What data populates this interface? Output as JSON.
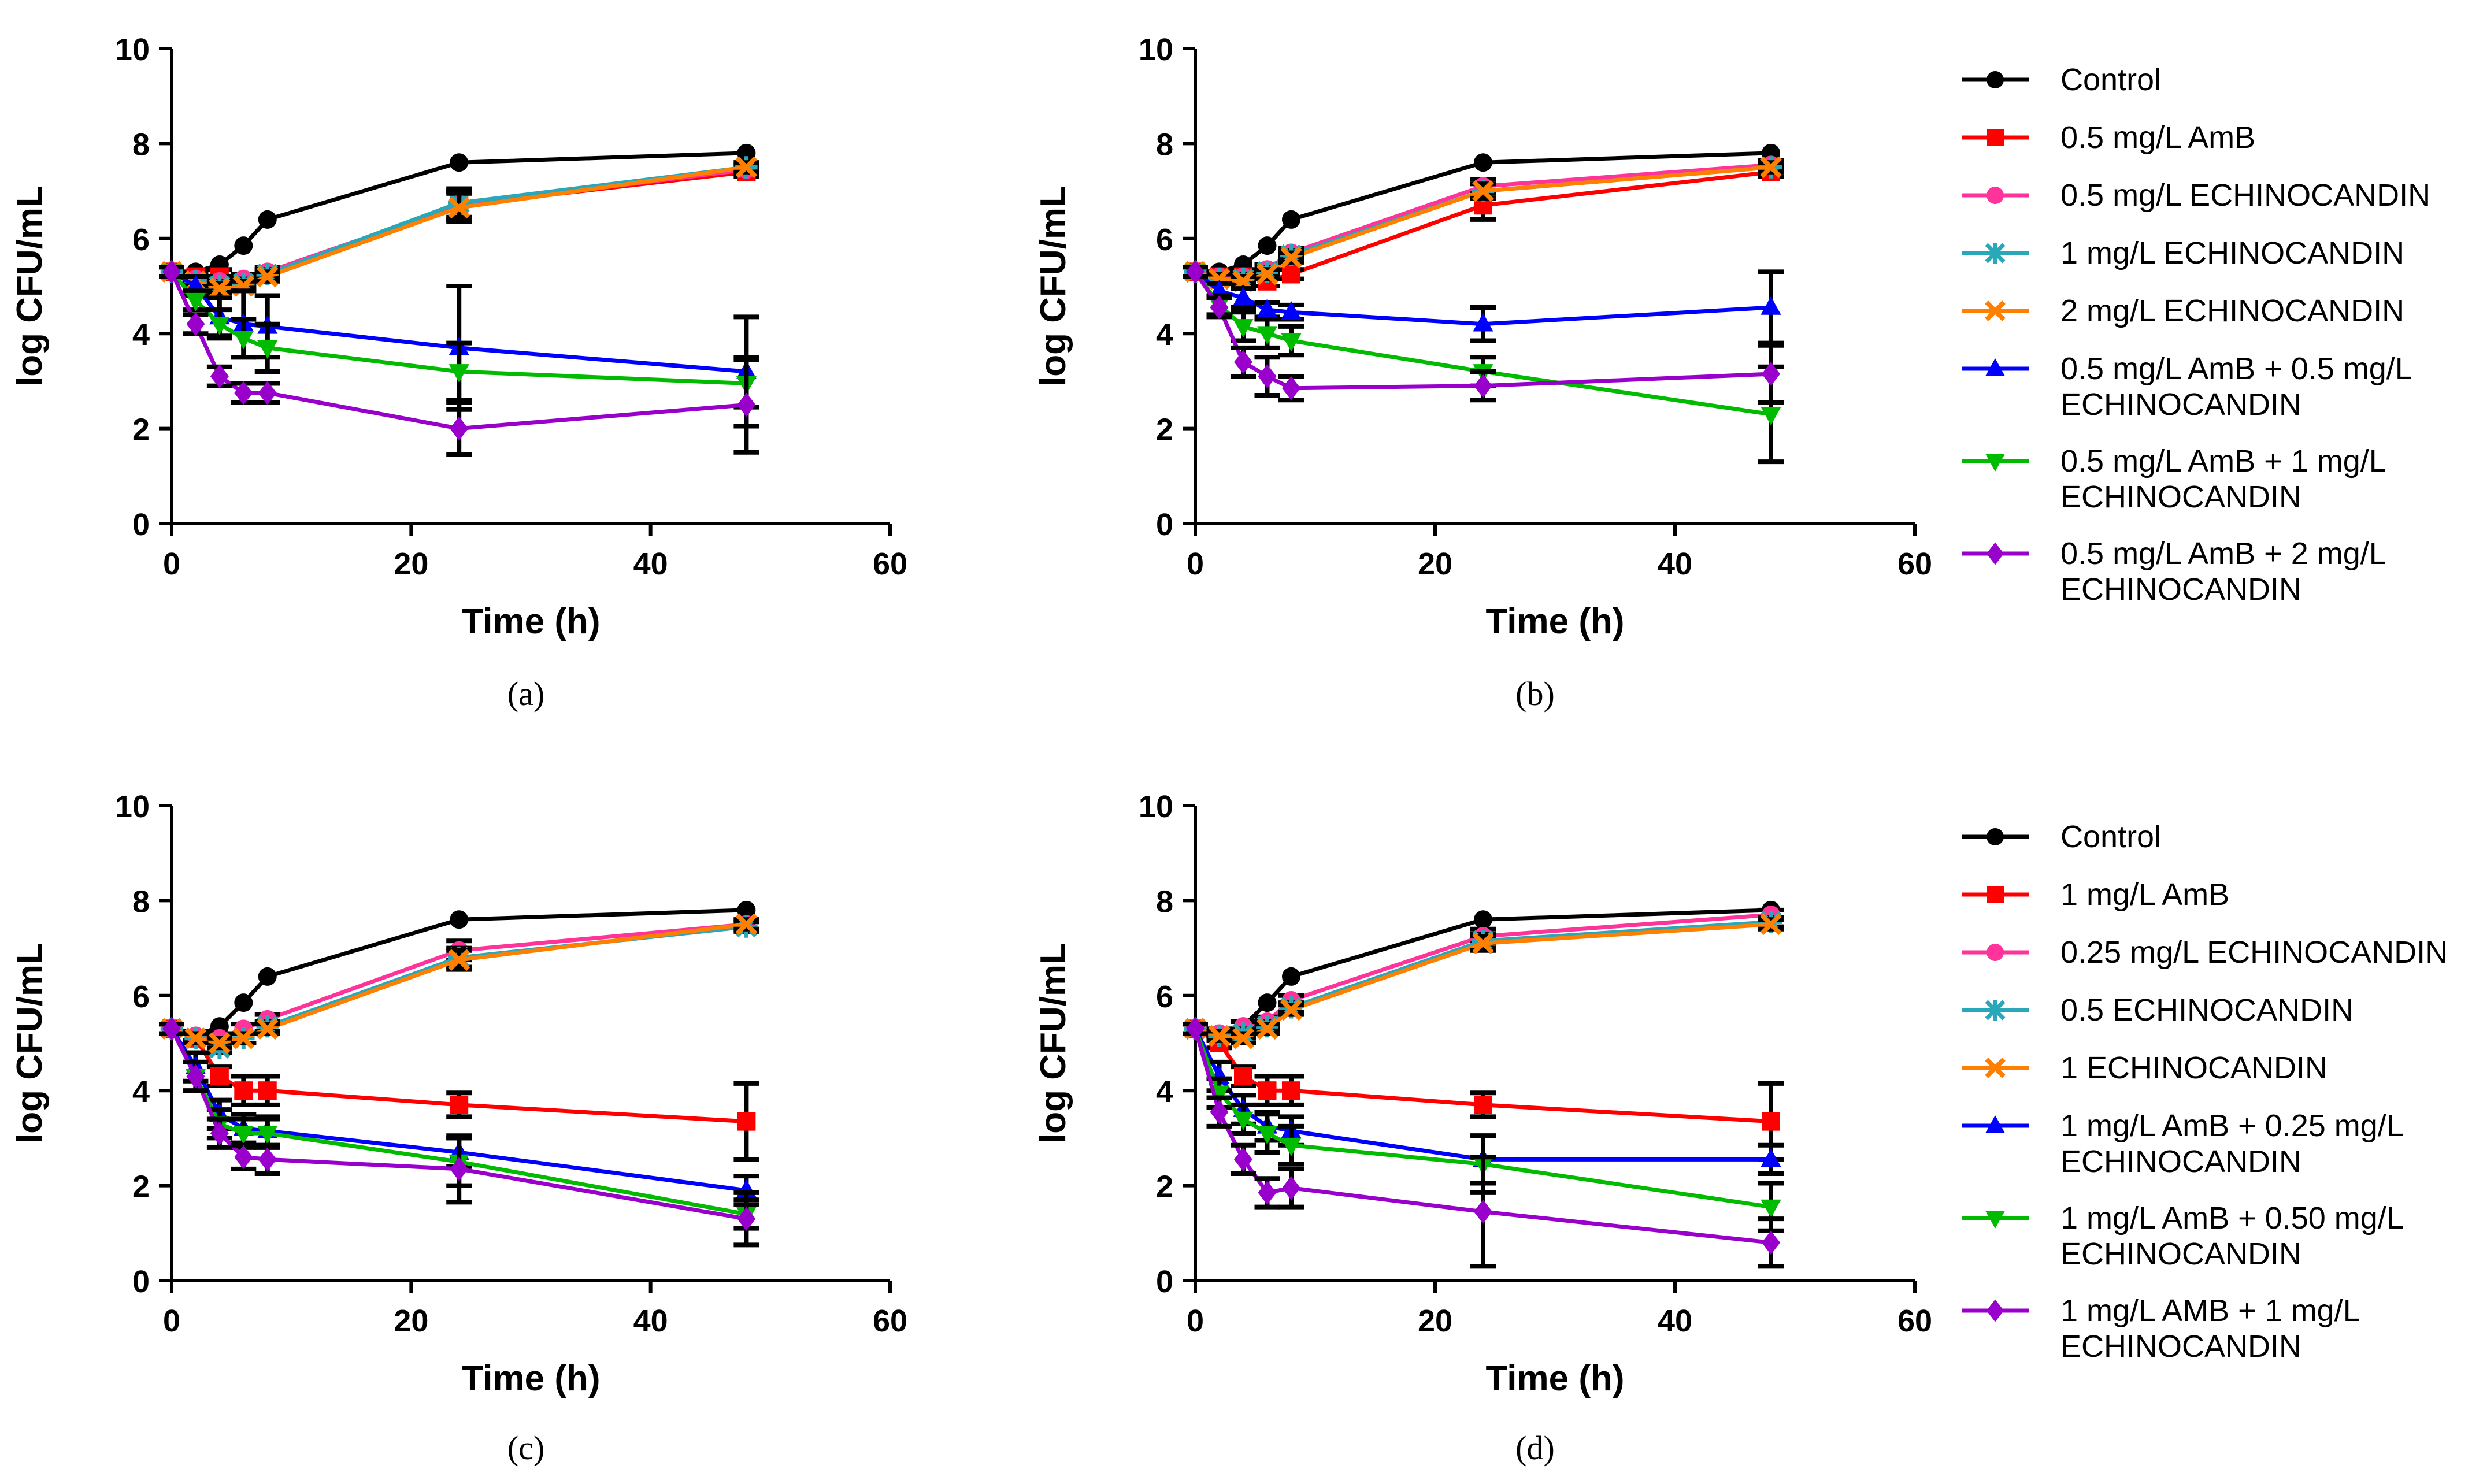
{
  "chart_data": [
    {
      "panel": "(a)",
      "type": "line",
      "xlabel": "Time (h)",
      "ylabel": "log CFU/mL",
      "xlim": [
        0,
        60
      ],
      "ylim": [
        0,
        10
      ],
      "xticks": [
        0,
        20,
        40,
        60
      ],
      "yticks": [
        0,
        2,
        4,
        6,
        8,
        10
      ],
      "x": [
        0,
        2,
        4,
        6,
        8,
        24,
        48
      ],
      "series": [
        {
          "name": "Control",
          "color": "#000000",
          "marker": "circle",
          "values": [
            5.3,
            5.3,
            5.45,
            5.85,
            6.4,
            7.6,
            7.8
          ],
          "errors": [
            0,
            0,
            0,
            0,
            0,
            0,
            0
          ]
        },
        {
          "name": "0.5 mg/L AmB",
          "color": "#ff0000",
          "marker": "square",
          "values": [
            5.3,
            5.2,
            5.2,
            5.1,
            5.25,
            6.7,
            7.4
          ],
          "errors": [
            0.1,
            0.1,
            0.15,
            0.1,
            0.1,
            0.3,
            0.1
          ]
        },
        {
          "name": "0.5 mg/L ECHINOCANDIN",
          "color": "#ff3399",
          "marker": "circle",
          "values": [
            5.3,
            5.15,
            5.1,
            5.15,
            5.3,
            6.7,
            7.45
          ],
          "errors": [
            0.1,
            0.1,
            0.1,
            0.1,
            0.1,
            0.3,
            0.1
          ]
        },
        {
          "name": "1 mg/L ECHINOCANDIN",
          "color": "#2aa7b8",
          "marker": "asterisk",
          "values": [
            5.3,
            5.1,
            5.0,
            5.05,
            5.25,
            6.75,
            7.5
          ],
          "errors": [
            0.1,
            0.1,
            0.1,
            0.1,
            0.1,
            0.3,
            0.1
          ]
        },
        {
          "name": "2 mg/L ECHINOCANDIN",
          "color": "#ff8000",
          "marker": "x",
          "values": [
            5.3,
            5.1,
            4.95,
            5.0,
            5.2,
            6.65,
            7.5
          ],
          "errors": [
            0.1,
            0.1,
            0.1,
            0.1,
            0.1,
            0.3,
            0.1
          ]
        },
        {
          "name": "0.5 mg/L AmB + 0.5 mg/L ECHINOCANDIN",
          "color": "#0000ff",
          "marker": "triangle-up",
          "values": [
            5.3,
            5.0,
            4.35,
            4.2,
            4.15,
            3.7,
            3.2
          ],
          "errors": [
            0.1,
            0.2,
            0.4,
            0.7,
            0.65,
            1.3,
            1.15
          ]
        },
        {
          "name": "0.5 mg/L AmB + 1 mg/L ECHINOCANDIN",
          "color": "#00bb00",
          "marker": "triangle-down",
          "values": [
            5.3,
            4.7,
            4.2,
            3.9,
            3.7,
            3.2,
            2.95
          ],
          "errors": [
            0.1,
            0.2,
            0.3,
            0.4,
            0.5,
            0.6,
            0.5
          ]
        },
        {
          "name": "0.5 mg/L AmB + 2 mg/L ECHINOCANDIN",
          "color": "#9900cc",
          "marker": "diamond",
          "values": [
            5.3,
            4.2,
            3.1,
            2.75,
            2.75,
            2.0,
            2.5
          ],
          "errors": [
            0.1,
            0.2,
            0.2,
            0.2,
            0.2,
            0.55,
            1.0
          ]
        }
      ]
    },
    {
      "panel": "(b)",
      "type": "line",
      "xlabel": "Time (h)",
      "ylabel": "log CFU/mL",
      "xlim": [
        0,
        60
      ],
      "ylim": [
        0,
        10
      ],
      "xticks": [
        0,
        20,
        40,
        60
      ],
      "yticks": [
        0,
        2,
        4,
        6,
        8,
        10
      ],
      "x": [
        0,
        2,
        4,
        6,
        8,
        24,
        48
      ],
      "series": [
        {
          "name": "Control",
          "color": "#000000",
          "marker": "circle",
          "values": [
            5.3,
            5.3,
            5.45,
            5.85,
            6.4,
            7.6,
            7.8
          ],
          "errors": [
            0,
            0,
            0,
            0,
            0,
            0,
            0
          ]
        },
        {
          "name": "0.5 mg/L AmB",
          "color": "#ff0000",
          "marker": "square",
          "values": [
            5.3,
            5.2,
            5.2,
            5.1,
            5.25,
            6.7,
            7.4
          ],
          "errors": [
            0.1,
            0.1,
            0.15,
            0.1,
            0.1,
            0.3,
            0.1
          ]
        },
        {
          "name": "0.5 mg/L ECHINOCANDIN",
          "color": "#ff3399",
          "marker": "circle",
          "values": [
            5.3,
            5.2,
            5.2,
            5.35,
            5.7,
            7.1,
            7.55
          ],
          "errors": [
            0.1,
            0.1,
            0.1,
            0.1,
            0.1,
            0.15,
            0.1
          ]
        },
        {
          "name": "1 mg/L ECHINOCANDIN",
          "color": "#2aa7b8",
          "marker": "asterisk",
          "values": [
            5.3,
            5.15,
            5.15,
            5.3,
            5.65,
            7.0,
            7.5
          ],
          "errors": [
            0.1,
            0.1,
            0.1,
            0.1,
            0.1,
            0.15,
            0.1
          ]
        },
        {
          "name": "2 mg/L ECHINOCANDIN",
          "color": "#ff8000",
          "marker": "x",
          "values": [
            5.3,
            5.15,
            5.1,
            5.25,
            5.6,
            7.0,
            7.5
          ],
          "errors": [
            0.1,
            0.1,
            0.1,
            0.1,
            0.1,
            0.15,
            0.1
          ]
        },
        {
          "name": "0.5 mg/L AmB + 0.5 mg/L ECHINOCANDIN",
          "color": "#0000ff",
          "marker": "triangle-up",
          "values": [
            5.3,
            4.9,
            4.75,
            4.5,
            4.45,
            4.2,
            4.55
          ],
          "errors": [
            0.1,
            0.15,
            0.2,
            0.15,
            0.15,
            0.35,
            0.75
          ]
        },
        {
          "name": "0.5 mg/L AmB + 1 mg/L ECHINOCANDIN",
          "color": "#00bb00",
          "marker": "triangle-down",
          "values": [
            5.3,
            4.6,
            4.15,
            4.0,
            3.85,
            3.2,
            2.3
          ],
          "errors": [
            0.1,
            0.2,
            0.3,
            0.3,
            0.3,
            0.3,
            1.0
          ]
        },
        {
          "name": "0.5 mg/L AmB + 2 mg/L ECHINOCANDIN",
          "color": "#9900cc",
          "marker": "diamond",
          "values": [
            5.3,
            4.55,
            3.4,
            3.1,
            2.85,
            2.9,
            3.15
          ],
          "errors": [
            0.1,
            0.2,
            0.3,
            0.4,
            0.25,
            0.3,
            0.6
          ]
        }
      ]
    },
    {
      "panel": "(c)",
      "type": "line",
      "xlabel": "Time (h)",
      "ylabel": "log CFU/mL",
      "xlim": [
        0,
        60
      ],
      "ylim": [
        0,
        10
      ],
      "xticks": [
        0,
        20,
        40,
        60
      ],
      "yticks": [
        0,
        2,
        4,
        6,
        8,
        10
      ],
      "x": [
        0,
        2,
        4,
        6,
        8,
        24,
        48
      ],
      "series": [
        {
          "name": "Control",
          "color": "#000000",
          "marker": "circle",
          "values": [
            5.3,
            5.15,
            5.35,
            5.85,
            6.4,
            7.6,
            7.8
          ],
          "errors": [
            0,
            0,
            0,
            0,
            0,
            0,
            0
          ]
        },
        {
          "name": "1 mg/L AmB",
          "color": "#ff0000",
          "marker": "square",
          "values": [
            5.3,
            5.1,
            4.3,
            4.0,
            4.0,
            3.7,
            3.35
          ],
          "errors": [
            0.1,
            0.1,
            0.2,
            0.3,
            0.3,
            0.25,
            0.8
          ]
        },
        {
          "name": "0.25 mg/L ECHINOCANDIN",
          "color": "#ff3399",
          "marker": "circle",
          "values": [
            5.3,
            5.15,
            5.1,
            5.3,
            5.5,
            6.95,
            7.5
          ],
          "errors": [
            0.1,
            0.1,
            0.1,
            0.1,
            0.1,
            0.2,
            0.1
          ]
        },
        {
          "name": "0.5 ECHINOCANDIN",
          "color": "#2aa7b8",
          "marker": "asterisk",
          "values": [
            5.3,
            5.1,
            4.9,
            5.1,
            5.35,
            6.8,
            7.45
          ],
          "errors": [
            0.1,
            0.1,
            0.1,
            0.1,
            0.1,
            0.2,
            0.1
          ]
        },
        {
          "name": "1 ECHINOCANDIN",
          "color": "#ff8000",
          "marker": "x",
          "values": [
            5.3,
            5.1,
            5.0,
            5.1,
            5.3,
            6.75,
            7.5
          ],
          "errors": [
            0.1,
            0.1,
            0.1,
            0.1,
            0.1,
            0.2,
            0.1
          ]
        },
        {
          "name": "1 mg/L  AmB + 0.25 mg/L ECHINOCANDIN",
          "color": "#0000ff",
          "marker": "triangle-up",
          "values": [
            5.3,
            4.5,
            3.5,
            3.2,
            3.15,
            2.7,
            1.9
          ],
          "errors": [
            0.1,
            0.3,
            0.3,
            0.3,
            0.3,
            0.3,
            0.3
          ]
        },
        {
          "name": "1 mg/L  AmB + 0.50 mg/L ECHINOCANDIN",
          "color": "#00bb00",
          "marker": "triangle-down",
          "values": [
            5.3,
            4.3,
            3.3,
            3.1,
            3.1,
            2.5,
            1.4
          ],
          "errors": [
            0.1,
            0.3,
            0.3,
            0.3,
            0.3,
            0.5,
            0.3
          ]
        },
        {
          "name": "1 mg/L AMB + 1 mg/L ECHINOCANDIN",
          "color": "#9900cc",
          "marker": "diamond",
          "values": [
            5.3,
            4.3,
            3.1,
            2.6,
            2.55,
            2.35,
            1.3
          ],
          "errors": [
            0.1,
            0.3,
            0.3,
            0.25,
            0.3,
            0.7,
            0.55
          ]
        }
      ]
    },
    {
      "panel": "(d)",
      "type": "line",
      "xlabel": "Time (h)",
      "ylabel": "log CFU/mL",
      "xlim": [
        0,
        60
      ],
      "ylim": [
        0,
        10
      ],
      "xticks": [
        0,
        20,
        40,
        60
      ],
      "yticks": [
        0,
        2,
        4,
        6,
        8,
        10
      ],
      "x": [
        0,
        2,
        4,
        6,
        8,
        24,
        48
      ],
      "series": [
        {
          "name": "Control",
          "color": "#000000",
          "marker": "circle",
          "values": [
            5.3,
            5.15,
            5.35,
            5.85,
            6.4,
            7.6,
            7.8
          ],
          "errors": [
            0,
            0,
            0,
            0,
            0,
            0,
            0
          ]
        },
        {
          "name": "1 mg/L AmB",
          "color": "#ff0000",
          "marker": "square",
          "values": [
            5.3,
            5.0,
            4.3,
            4.0,
            4.0,
            3.7,
            3.35
          ],
          "errors": [
            0.1,
            0.1,
            0.2,
            0.3,
            0.3,
            0.25,
            0.8
          ]
        },
        {
          "name": "0.25 mg/L ECHINOCANDIN",
          "color": "#ff3399",
          "marker": "circle",
          "values": [
            5.3,
            5.2,
            5.35,
            5.45,
            5.9,
            7.25,
            7.7
          ],
          "errors": [
            0.1,
            0.1,
            0.1,
            0.1,
            0.1,
            0.15,
            0.1
          ]
        },
        {
          "name": "0.5 ECHINOCANDIN",
          "color": "#2aa7b8",
          "marker": "asterisk",
          "values": [
            5.3,
            5.15,
            5.2,
            5.35,
            5.75,
            7.15,
            7.55
          ],
          "errors": [
            0.1,
            0.1,
            0.1,
            0.1,
            0.1,
            0.15,
            0.1
          ]
        },
        {
          "name": "1 ECHINOCANDIN",
          "color": "#ff8000",
          "marker": "x",
          "values": [
            5.3,
            5.15,
            5.1,
            5.3,
            5.7,
            7.1,
            7.5
          ],
          "errors": [
            0.1,
            0.1,
            0.1,
            0.1,
            0.1,
            0.15,
            0.1
          ]
        },
        {
          "name": "1 mg/L  AmB + 0.25 mg/L ECHINOCANDIN",
          "color": "#0000ff",
          "marker": "triangle-up",
          "values": [
            5.3,
            4.3,
            3.6,
            3.25,
            3.15,
            2.55,
            2.55
          ],
          "errors": [
            0.1,
            0.3,
            0.3,
            0.3,
            0.3,
            0.5,
            0.3
          ]
        },
        {
          "name": "1 mg/L  AmB + 0.50 mg/L ECHINOCANDIN",
          "color": "#00bb00",
          "marker": "triangle-down",
          "values": [
            5.3,
            3.95,
            3.4,
            3.1,
            2.85,
            2.45,
            1.55
          ],
          "errors": [
            0.1,
            0.3,
            0.3,
            0.4,
            0.4,
            0.6,
            0.5
          ]
        },
        {
          "name": "1 mg/L AMB + 1 mg/L ECHINOCANDIN",
          "color": "#9900cc",
          "marker": "diamond",
          "values": [
            5.3,
            3.55,
            2.55,
            1.85,
            1.95,
            1.45,
            0.8
          ],
          "errors": [
            0.1,
            0.3,
            0.3,
            0.3,
            0.4,
            1.15,
            0.5
          ]
        }
      ]
    }
  ]
}
